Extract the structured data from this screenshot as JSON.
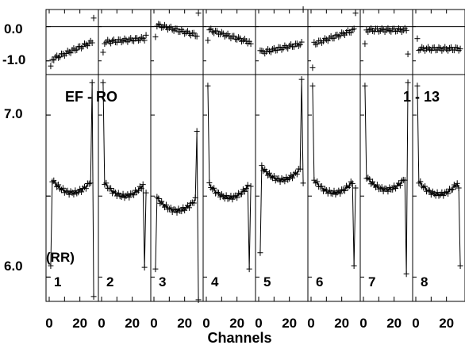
{
  "chart_data": {
    "type": "line",
    "title": "EF - RO",
    "baseline": "1 - 13",
    "polarization": "(RR)",
    "xlabel": "Channels",
    "x_tick_labels": [
      "0",
      "20"
    ],
    "x_range": [
      0,
      30
    ],
    "phase_panel": {
      "y_tick_labels": [
        "0.0",
        "-1.0"
      ],
      "ylim": [
        -1.4,
        0.5
      ],
      "reference_line": 0.0
    },
    "amp_panel": {
      "y_tick_labels": [
        "7.0",
        "6.0"
      ],
      "ylim": [
        5.85,
        7.25
      ]
    },
    "sub_panels": [
      {
        "label": "1",
        "phase": {
          "start": -0.95,
          "end": -0.45,
          "first": -1.15,
          "last": 0.25
        },
        "amp": {
          "level": 6.52,
          "first": 6.07,
          "last": 7.2,
          "tail": 5.88
        }
      },
      {
        "label": "2",
        "phase": {
          "start": -0.45,
          "end": -0.35,
          "first": -0.75,
          "last": -0.25
        },
        "amp": {
          "level": 6.5,
          "first": 7.2,
          "last": 6.06,
          "tail": 6.52
        }
      },
      {
        "label": "3",
        "phase": {
          "start": 0.05,
          "end": -0.25,
          "first": -0.3,
          "last": 0.4
        },
        "amp": {
          "level": 6.41,
          "first": 6.05,
          "last": 6.9,
          "tail": 5.86
        }
      },
      {
        "label": "4",
        "phase": {
          "start": -0.1,
          "end": -0.45,
          "first": -0.4,
          "last": -0.5
        },
        "amp": {
          "level": 6.49,
          "first": 7.18,
          "last": 6.05,
          "tail": 6.56
        }
      },
      {
        "label": "5",
        "phase": {
          "start": -0.75,
          "end": -0.5,
          "first": -0.7,
          "last": 0.5
        },
        "amp": {
          "level": 6.6,
          "first": 6.15,
          "last": 7.22,
          "tail": 6.58
        }
      },
      {
        "label": "6",
        "phase": {
          "start": -0.5,
          "end": -0.1,
          "first": -1.2,
          "last": 0.4
        },
        "amp": {
          "level": 6.52,
          "first": 7.18,
          "last": 6.07,
          "tail": 6.55
        }
      },
      {
        "label": "7",
        "phase": {
          "start": -0.1,
          "end": -0.1,
          "first": -0.5,
          "last": -0.8
        },
        "amp": {
          "level": 6.54,
          "first": 7.18,
          "last": 6.02,
          "tail": 7.2
        }
      },
      {
        "label": "8",
        "phase": {
          "start": -0.65,
          "end": -0.65,
          "first": -0.35,
          "last": -0.65
        },
        "amp": {
          "level": 6.51,
          "first": 7.18,
          "last": 6.55,
          "tail": 6.07
        }
      }
    ]
  }
}
